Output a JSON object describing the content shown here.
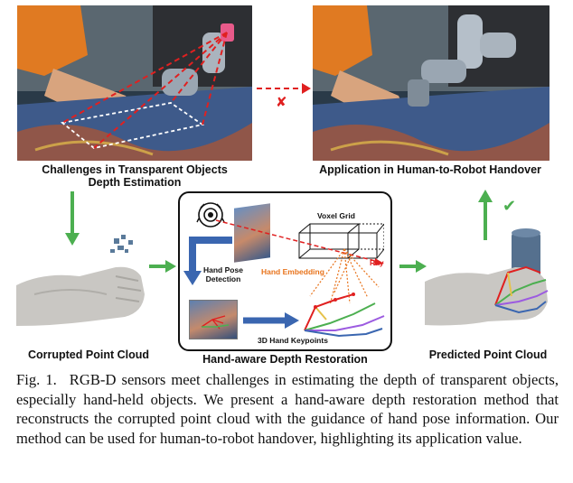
{
  "labels": {
    "top_left_line1": "Challenges in Transparent Objects",
    "top_left_line2": "Depth Estimation",
    "top_right": "Application in Human-to-Robot Handover",
    "bottom_left": "Corrupted Point Cloud",
    "bottom_center": "Hand-aware Depth Restoration",
    "bottom_right": "Predicted Point Cloud"
  },
  "diagram": {
    "voxel_grid": "Voxel Grid",
    "ray": "Ray",
    "hand_embedding": "Hand Embedding",
    "hand_pose_line1": "Hand Pose",
    "hand_pose_line2": "Detection",
    "keypoints": "3D Hand Keypoints"
  },
  "marks": {
    "cross": "✘",
    "check": "✔"
  },
  "colors": {
    "arrow_green": "#4caf50",
    "arrow_blue": "#3a66b0",
    "ray_red": "#e02020",
    "embedding_orange": "#e8731b"
  },
  "caption": {
    "figno": "Fig. 1.",
    "text": "RGB-D sensors meet challenges in estimating the depth of transparent objects, especially hand-held objects. We present a hand-aware depth restoration method that reconstructs the corrupted point cloud with the guidance of hand pose information. Our method can be used for human-to-robot handover, highlighting its application value."
  }
}
